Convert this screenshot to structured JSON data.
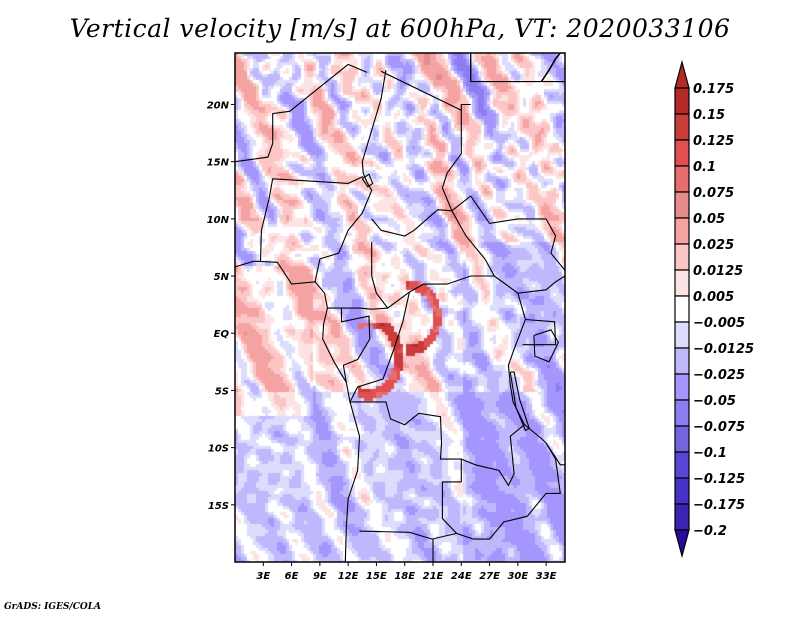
{
  "title": "Vertical velocity [m/s] at 600hPa, VT: 2020033106",
  "footer": "GrADS: IGES/COLA",
  "chart_data": {
    "type": "heatmap",
    "title": "Vertical velocity [m/s] at 600hPa, VT: 2020033106",
    "variable": "Vertical velocity",
    "units": "m/s",
    "level": "600hPa",
    "valid_time": "2020033106",
    "xlabel": "",
    "ylabel": "",
    "lon_range": [
      0,
      35
    ],
    "lat_range": [
      -20,
      24.5
    ],
    "x_ticks": [
      {
        "value": 3,
        "label": "3E"
      },
      {
        "value": 6,
        "label": "6E"
      },
      {
        "value": 9,
        "label": "9E"
      },
      {
        "value": 12,
        "label": "12E"
      },
      {
        "value": 15,
        "label": "15E"
      },
      {
        "value": 18,
        "label": "18E"
      },
      {
        "value": 21,
        "label": "21E"
      },
      {
        "value": 24,
        "label": "24E"
      },
      {
        "value": 27,
        "label": "27E"
      },
      {
        "value": 30,
        "label": "30E"
      },
      {
        "value": 33,
        "label": "33E"
      }
    ],
    "y_ticks": [
      {
        "value": 20,
        "label": "20N"
      },
      {
        "value": 15,
        "label": "15N"
      },
      {
        "value": 10,
        "label": "10N"
      },
      {
        "value": 5,
        "label": "5N"
      },
      {
        "value": 0,
        "label": "EQ"
      },
      {
        "value": -5,
        "label": "5S"
      },
      {
        "value": -10,
        "label": "10S"
      },
      {
        "value": -15,
        "label": "15S"
      }
    ],
    "grid": false,
    "legend": {
      "type": "colorbar",
      "placement": "right",
      "extend": "both",
      "levels": [
        0.175,
        0.15,
        0.125,
        0.1,
        0.075,
        0.05,
        0.025,
        0.0125,
        0.005,
        -0.005,
        -0.0125,
        -0.025,
        -0.05,
        -0.075,
        -0.1,
        -0.125,
        -0.175,
        -0.2
      ],
      "level_labels": [
        "0.175",
        "0.15",
        "0.125",
        "0.1",
        "0.075",
        "0.05",
        "0.025",
        "0.0125",
        "0.005",
        "−0.005",
        "−0.0125",
        "−0.025",
        "−0.05",
        "−0.075",
        "−0.1",
        "−0.125",
        "−0.175",
        "−0.2"
      ],
      "top_extend_color": "#b42828",
      "bottom_extend_color": "#2a0a9c",
      "box_colors": [
        "#b42a2a",
        "#c83c3c",
        "#e05050",
        "#e86e6e",
        "#e68c8c",
        "#f4a2a2",
        "#fcc6c6",
        "#fde4e4",
        "#ffffff",
        "#dcdcfc",
        "#c0b8fc",
        "#a496fc",
        "#8c7ef0",
        "#7464e0",
        "#5846d4",
        "#4632c4",
        "#3a24b0"
      ]
    },
    "features": [
      "Mostly weak ascent/descent (|w| < 0.05 m/s) over Central Africa",
      "SW-NE oriented alternating bands over the Sahel/Sahara (10N-22N)",
      "Strong ascent (red, >0.1 m/s) arcs near 15E-22E around 0-5N/5S",
      "Predominantly weak descent (blue) south of 5S and east of 24E"
    ]
  }
}
